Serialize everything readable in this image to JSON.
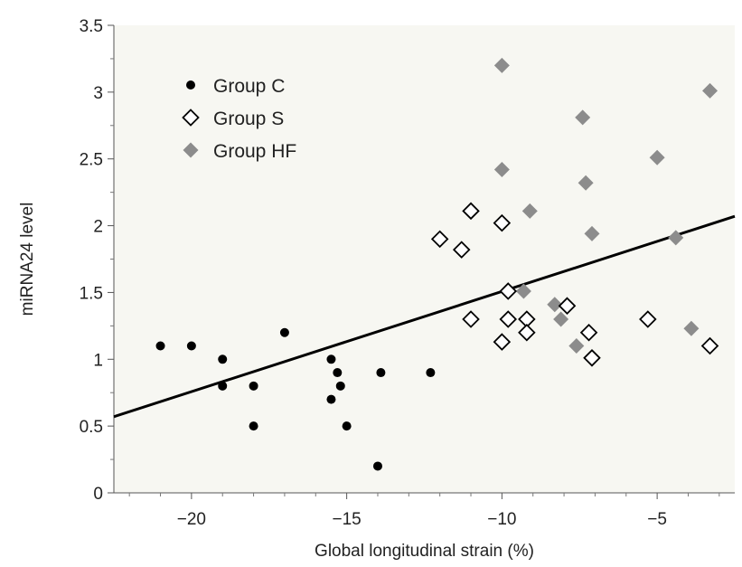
{
  "chart_data": {
    "type": "scatter",
    "xlabel": "Global longitudinal strain (%)",
    "ylabel": "miRNA24 level",
    "xlim": [
      -22.5,
      -2.5
    ],
    "ylim": [
      0,
      3.5
    ],
    "x_ticks": [
      -20,
      -15,
      -10,
      -5
    ],
    "x_tick_labels": [
      "−20",
      "−15",
      "−10",
      "−5"
    ],
    "y_ticks": [
      0,
      0.5,
      1,
      1.5,
      2,
      2.5,
      3,
      3.5
    ],
    "y_tick_labels": [
      "0",
      "0.5",
      "1",
      "1.5",
      "2",
      "2.5",
      "3",
      "3.5"
    ],
    "grid": false,
    "legend_position": "top-left",
    "background_color": "#f7f7f2",
    "series": [
      {
        "name": "Group C",
        "marker": "filled-circle",
        "color": "#000000",
        "points": [
          [
            -21.0,
            1.1
          ],
          [
            -20.0,
            1.1
          ],
          [
            -19.0,
            1.0
          ],
          [
            -19.0,
            0.8
          ],
          [
            -18.0,
            0.8
          ],
          [
            -18.0,
            0.5
          ],
          [
            -17.0,
            1.2
          ],
          [
            -15.5,
            1.0
          ],
          [
            -15.5,
            0.7
          ],
          [
            -15.3,
            0.9
          ],
          [
            -15.2,
            0.8
          ],
          [
            -15.0,
            0.5
          ],
          [
            -14.0,
            0.2
          ],
          [
            -13.9,
            0.9
          ],
          [
            -12.3,
            0.9
          ]
        ]
      },
      {
        "name": "Group S",
        "marker": "open-diamond",
        "color": "#000000",
        "points": [
          [
            -12.0,
            1.9
          ],
          [
            -11.3,
            1.82
          ],
          [
            -11.0,
            2.11
          ],
          [
            -11.0,
            1.3
          ],
          [
            -10.0,
            2.02
          ],
          [
            -10.0,
            1.13
          ],
          [
            -9.8,
            1.51
          ],
          [
            -9.8,
            1.3
          ],
          [
            -9.2,
            1.3
          ],
          [
            -9.2,
            1.2
          ],
          [
            -7.9,
            1.4
          ],
          [
            -7.2,
            1.2
          ],
          [
            -7.1,
            1.01
          ],
          [
            -5.3,
            1.3
          ],
          [
            -3.3,
            1.1
          ]
        ]
      },
      {
        "name": "Group HF",
        "marker": "filled-diamond",
        "color": "#8c8c8c",
        "points": [
          [
            -10.0,
            3.2
          ],
          [
            -10.0,
            2.42
          ],
          [
            -9.3,
            1.51
          ],
          [
            -9.1,
            2.11
          ],
          [
            -8.3,
            1.41
          ],
          [
            -8.1,
            1.3
          ],
          [
            -7.6,
            1.1
          ],
          [
            -7.4,
            2.81
          ],
          [
            -7.3,
            2.32
          ],
          [
            -7.1,
            1.94
          ],
          [
            -5.0,
            2.51
          ],
          [
            -4.4,
            1.91
          ],
          [
            -3.9,
            1.23
          ],
          [
            -3.3,
            3.01
          ]
        ]
      }
    ],
    "regression_line": {
      "x": [
        -22.5,
        -2.5
      ],
      "y": [
        0.57,
        2.07
      ],
      "color": "#000000"
    }
  }
}
